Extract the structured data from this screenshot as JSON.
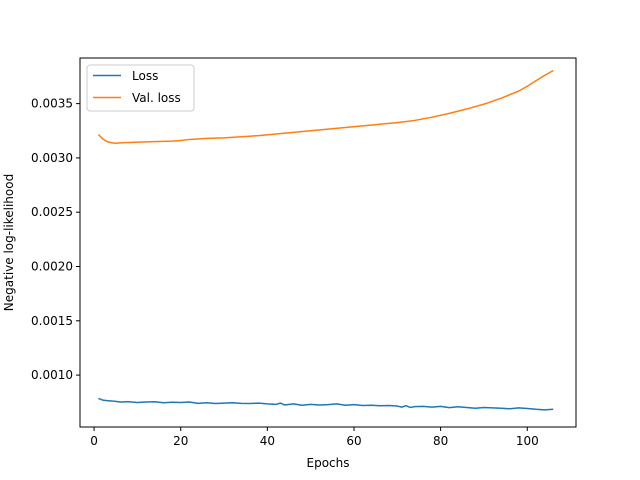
{
  "chart_data": {
    "type": "line",
    "title": "",
    "xlabel": "Epochs",
    "ylabel": "Negative log-likelihood",
    "xlim": [
      -3.25,
      111.25
    ],
    "ylim": [
      0.000522,
      0.00392
    ],
    "xticks": [
      0,
      20,
      40,
      60,
      80,
      100
    ],
    "yticks": [
      0.001,
      0.0015,
      0.002,
      0.0025,
      0.003,
      0.0035
    ],
    "ytick_labels": [
      "0.0010",
      "0.0015",
      "0.0020",
      "0.0025",
      "0.0030",
      "0.0035"
    ],
    "grid": false,
    "legend": "top-left",
    "series": [
      {
        "name": "Loss",
        "color": "#1f77b4",
        "x": [
          1,
          2,
          3,
          4,
          5,
          6,
          8,
          10,
          12,
          14,
          16,
          18,
          20,
          22,
          24,
          26,
          28,
          30,
          32,
          34,
          36,
          38,
          40,
          42,
          43,
          44,
          46,
          48,
          50,
          52,
          54,
          56,
          58,
          60,
          62,
          64,
          66,
          68,
          70,
          71,
          72,
          73,
          74,
          76,
          78,
          80,
          82,
          84,
          86,
          88,
          90,
          92,
          94,
          96,
          98,
          100,
          102,
          104,
          106
        ],
        "y": [
          0.000785,
          0.00077,
          0.000765,
          0.000762,
          0.000758,
          0.000752,
          0.000755,
          0.000748,
          0.000752,
          0.000755,
          0.000745,
          0.00075,
          0.000748,
          0.000752,
          0.00074,
          0.000745,
          0.000738,
          0.000742,
          0.000745,
          0.00074,
          0.000738,
          0.000742,
          0.000735,
          0.00073,
          0.000742,
          0.000725,
          0.000735,
          0.000722,
          0.00073,
          0.000725,
          0.000728,
          0.000735,
          0.000722,
          0.000728,
          0.00072,
          0.000722,
          0.000718,
          0.00072,
          0.000715,
          0.000705,
          0.000718,
          0.000702,
          0.00071,
          0.000712,
          0.000705,
          0.000712,
          0.0007,
          0.000708,
          0.000702,
          0.000695,
          0.000702,
          0.000698,
          0.000695,
          0.00069,
          0.000698,
          0.000692,
          0.000685,
          0.00068,
          0.000685
        ]
      },
      {
        "name": "Val. loss",
        "color": "#ff7f0e",
        "x": [
          1,
          2,
          3,
          4,
          5,
          6,
          8,
          10,
          14,
          18,
          20,
          22,
          26,
          30,
          34,
          38,
          42,
          46,
          50,
          54,
          58,
          62,
          66,
          70,
          74,
          78,
          82,
          86,
          90,
          94,
          98,
          100,
          102,
          104,
          106
        ],
        "y": [
          0.003215,
          0.003175,
          0.00315,
          0.00314,
          0.003135,
          0.003138,
          0.003142,
          0.003145,
          0.00315,
          0.003155,
          0.00316,
          0.00317,
          0.00318,
          0.003185,
          0.003195,
          0.003205,
          0.00322,
          0.003235,
          0.00325,
          0.003265,
          0.00328,
          0.003295,
          0.00331,
          0.003325,
          0.003345,
          0.003375,
          0.00341,
          0.00345,
          0.003495,
          0.00355,
          0.003615,
          0.00366,
          0.00371,
          0.00376,
          0.003805
        ]
      }
    ]
  }
}
